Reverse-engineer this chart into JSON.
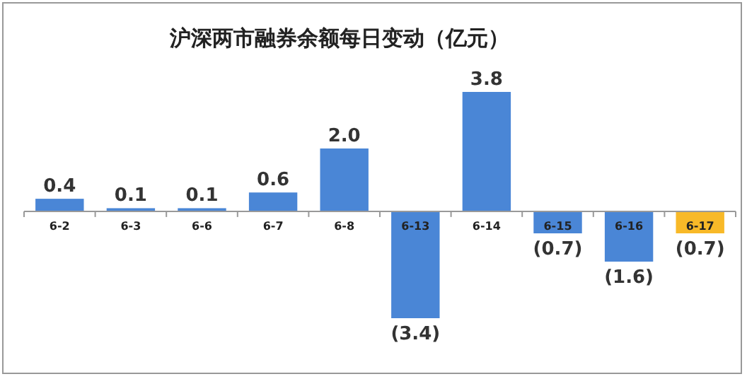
{
  "chart_data": {
    "type": "bar",
    "title": "沪深两市融券余额每日变动（亿元）",
    "categories": [
      "6-2",
      "6-3",
      "6-6",
      "6-7",
      "6-8",
      "6-13",
      "6-14",
      "6-15",
      "6-16",
      "6-17"
    ],
    "values": [
      0.4,
      0.1,
      0.1,
      0.6,
      2.0,
      -3.4,
      3.8,
      -0.7,
      -1.6,
      -0.7
    ],
    "colors": [
      "#4a86d6",
      "#4a86d6",
      "#4a86d6",
      "#4a86d6",
      "#4a86d6",
      "#4a86d6",
      "#4a86d6",
      "#4a86d6",
      "#4a86d6",
      "#f8b928"
    ],
    "value_labels": [
      "0.4",
      "0.1",
      "0.1",
      "0.6",
      "2.0",
      "(3.4)",
      "3.8",
      "(0.7)",
      "(1.6)",
      "(0.7)"
    ],
    "orientation": "vertical"
  }
}
